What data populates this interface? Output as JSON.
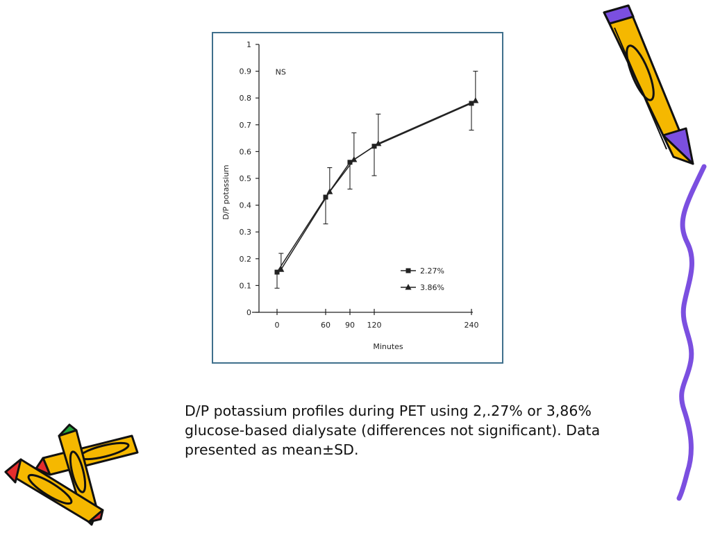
{
  "caption": "D/P potassium profiles during PET using 2,.27% or 3,86% glucose-based dialysate (differences not significant). Data presented as mean±SD.",
  "chart_data": {
    "type": "line",
    "title": "",
    "xlabel": "Minutes",
    "ylabel": "D/P potassium",
    "xlim": [
      -8,
      255
    ],
    "ylim": [
      0,
      1
    ],
    "x_ticks": [
      0,
      60,
      90,
      120,
      240
    ],
    "y_ticks": [
      0,
      0.1,
      0.2,
      0.3,
      0.4,
      0.5,
      0.6,
      0.7,
      0.8,
      0.9,
      1
    ],
    "y_tick_labels": [
      "0",
      "0.1",
      "0.2",
      "0.3",
      "0.4",
      "0.5",
      "0.6",
      "0.7",
      "0.8",
      "0.9",
      "1"
    ],
    "annotation": "NS",
    "legend_position": "bottom-right",
    "series": [
      {
        "name": "2.27%",
        "marker": "square",
        "x": [
          0,
          60,
          90,
          120,
          240
        ],
        "y": [
          0.15,
          0.43,
          0.56,
          0.62,
          0.78
        ],
        "err": [
          0.06,
          0.1,
          0.1,
          0.11,
          0.1
        ]
      },
      {
        "name": "3.86%",
        "marker": "triangle",
        "x": [
          5,
          65,
          95,
          125,
          245
        ],
        "y": [
          0.16,
          0.45,
          0.57,
          0.63,
          0.79
        ],
        "err": [
          0.06,
          0.09,
          0.1,
          0.11,
          0.11
        ]
      }
    ]
  },
  "decorations": {
    "pencil_body_color": "#f5b800",
    "pencil_outline_color": "#111111",
    "squiggle_color": "#7b4fe0",
    "pencil_icon_names": [
      "pencil-icon",
      "crossed-pencils-icon"
    ]
  }
}
